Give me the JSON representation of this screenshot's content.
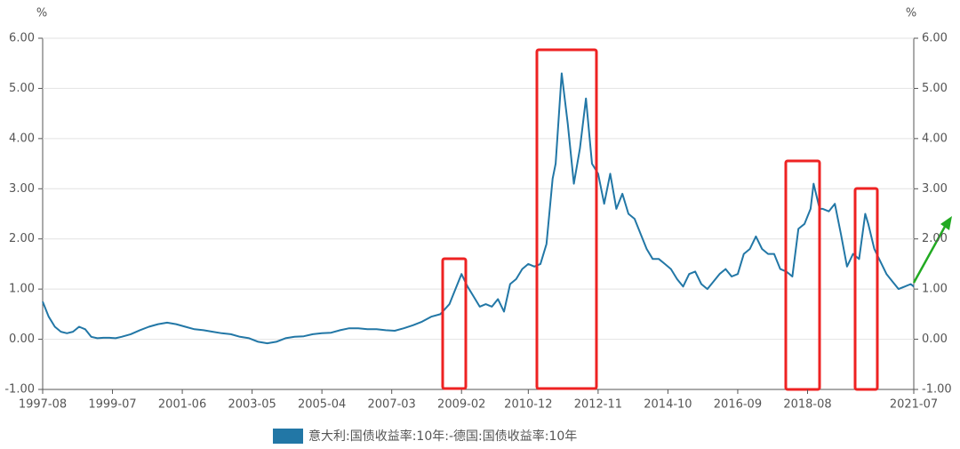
{
  "chart_data": {
    "type": "line",
    "y_unit": "%",
    "y2_unit": "%",
    "x": [
      "1997-08",
      "1997-10",
      "1997-12",
      "1998-02",
      "1998-04",
      "1998-06",
      "1998-08",
      "1998-10",
      "1998-12",
      "1999-02",
      "1999-04",
      "1999-06",
      "1999-08",
      "1999-10",
      "2000-01",
      "2000-04",
      "2000-07",
      "2000-10",
      "2001-01",
      "2001-04",
      "2001-07",
      "2001-10",
      "2002-01",
      "2002-04",
      "2002-07",
      "2002-10",
      "2003-01",
      "2003-04",
      "2003-07",
      "2003-10",
      "2004-01",
      "2004-04",
      "2004-07",
      "2004-10",
      "2005-01",
      "2005-04",
      "2005-07",
      "2005-10",
      "2006-01",
      "2006-04",
      "2006-07",
      "2006-10",
      "2007-01",
      "2007-04",
      "2007-07",
      "2007-10",
      "2008-01",
      "2008-04",
      "2008-07",
      "2008-10",
      "2008-12",
      "2009-02",
      "2009-04",
      "2009-06",
      "2009-08",
      "2009-10",
      "2009-12",
      "2010-02",
      "2010-04",
      "2010-06",
      "2010-08",
      "2010-10",
      "2010-12",
      "2011-02",
      "2011-04",
      "2011-06",
      "2011-08",
      "2011-09",
      "2011-11",
      "2011-12",
      "2012-01",
      "2012-03",
      "2012-05",
      "2012-07",
      "2012-09",
      "2012-11",
      "2013-01",
      "2013-03",
      "2013-05",
      "2013-07",
      "2013-09",
      "2013-11",
      "2014-01",
      "2014-03",
      "2014-05",
      "2014-07",
      "2014-09",
      "2014-11",
      "2015-01",
      "2015-03",
      "2015-05",
      "2015-07",
      "2015-09",
      "2015-11",
      "2016-01",
      "2016-03",
      "2016-05",
      "2016-07",
      "2016-09",
      "2016-11",
      "2017-01",
      "2017-03",
      "2017-05",
      "2017-07",
      "2017-09",
      "2017-11",
      "2018-01",
      "2018-03",
      "2018-05",
      "2018-07",
      "2018-09",
      "2018-10",
      "2018-12",
      "2019-01",
      "2019-03",
      "2019-05",
      "2019-07",
      "2019-09",
      "2019-11",
      "2020-01",
      "2020-03",
      "2020-04",
      "2020-06",
      "2020-08",
      "2020-10",
      "2020-12",
      "2021-02",
      "2021-04",
      "2021-06",
      "2021-07"
    ],
    "series": [
      {
        "name": "意大利:国债收益率:10年:-德国:国债收益率:10年",
        "color": "#2277a6",
        "values": [
          0.75,
          0.45,
          0.25,
          0.15,
          0.12,
          0.15,
          0.25,
          0.2,
          0.05,
          0.02,
          0.03,
          0.03,
          0.02,
          0.05,
          0.1,
          0.18,
          0.25,
          0.3,
          0.33,
          0.3,
          0.25,
          0.2,
          0.18,
          0.15,
          0.12,
          0.1,
          0.05,
          0.02,
          -0.05,
          -0.08,
          -0.05,
          0.02,
          0.05,
          0.06,
          0.1,
          0.12,
          0.13,
          0.18,
          0.22,
          0.22,
          0.2,
          0.2,
          0.18,
          0.17,
          0.22,
          0.28,
          0.35,
          0.45,
          0.5,
          0.7,
          1.0,
          1.3,
          1.05,
          0.85,
          0.65,
          0.7,
          0.65,
          0.8,
          0.55,
          1.1,
          1.2,
          1.4,
          1.5,
          1.45,
          1.5,
          1.9,
          3.2,
          3.5,
          5.3,
          4.8,
          4.3,
          3.1,
          3.8,
          4.8,
          3.5,
          3.3,
          2.7,
          3.3,
          2.6,
          2.9,
          2.5,
          2.4,
          2.1,
          1.8,
          1.6,
          1.6,
          1.5,
          1.4,
          1.2,
          1.05,
          1.3,
          1.35,
          1.1,
          1.0,
          1.15,
          1.3,
          1.4,
          1.25,
          1.3,
          1.7,
          1.8,
          2.05,
          1.8,
          1.7,
          1.7,
          1.4,
          1.35,
          1.25,
          2.2,
          2.3,
          2.6,
          3.1,
          2.6,
          2.6,
          2.55,
          2.7,
          2.1,
          1.45,
          1.7,
          1.6,
          2.5,
          2.3,
          1.8,
          1.55,
          1.3,
          1.15,
          1.0,
          1.05,
          1.1,
          1.05
        ]
      }
    ],
    "xlim": [
      "1997-08",
      "2021-07"
    ],
    "xticks": [
      "1997-08",
      "1999-07",
      "2001-06",
      "2003-05",
      "2005-04",
      "2007-03",
      "2009-02",
      "2010-12",
      "2012-11",
      "2014-10",
      "2016-09",
      "2018-08",
      "2021-07"
    ],
    "ylim": [
      -1,
      6
    ],
    "yticks": [
      {
        "value": -1,
        "label": "-1.00"
      },
      {
        "value": 0,
        "label": "0.00"
      },
      {
        "value": 1,
        "label": "1.00"
      },
      {
        "value": 2,
        "label": "2.00"
      },
      {
        "value": 3,
        "label": "3.00"
      },
      {
        "value": 4,
        "label": "4.00"
      },
      {
        "value": 5,
        "label": "5.00"
      },
      {
        "value": 6,
        "label": "6.00"
      }
    ],
    "y2lim": [
      -1,
      6
    ],
    "y2ticks": [
      {
        "value": -1,
        "label": "-1.00"
      },
      {
        "value": 0,
        "label": "0.00"
      },
      {
        "value": 1,
        "label": "1.00"
      },
      {
        "value": 2,
        "label": "2.00"
      },
      {
        "value": 3,
        "label": "3.00"
      },
      {
        "value": 4,
        "label": "4.00"
      },
      {
        "value": 5,
        "label": "5.00"
      },
      {
        "value": 6,
        "label": "6.00"
      }
    ],
    "grid": true
  }
}
